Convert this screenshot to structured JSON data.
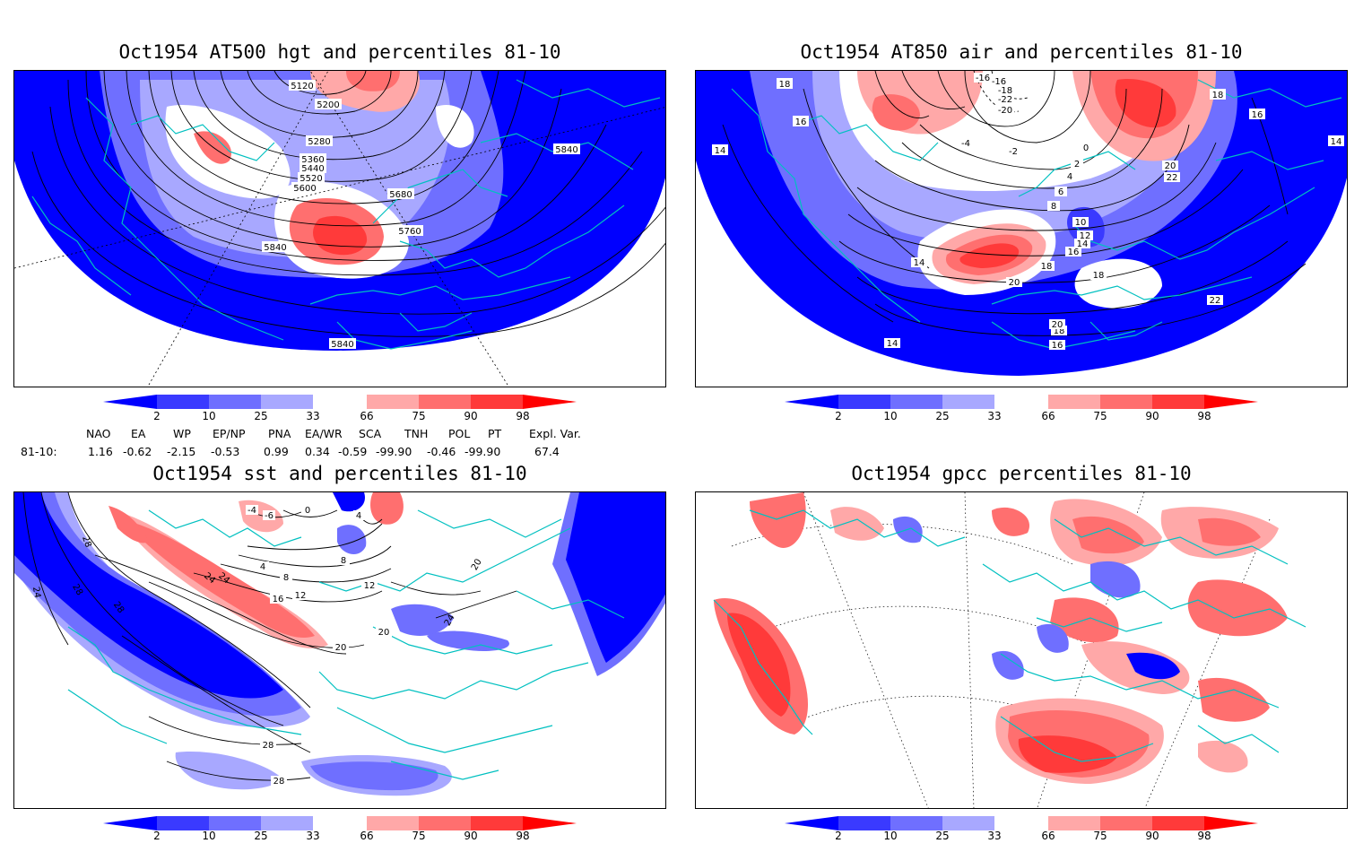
{
  "panels": [
    {
      "title": "Oct1954 AT500 hgt and percentiles 81-10",
      "contour_labels": [
        "5120",
        "5200",
        "5280",
        "5360",
        "5440",
        "5520",
        "5600",
        "5680",
        "5760",
        "5840",
        "5840",
        "5840"
      ]
    },
    {
      "title": "Oct1954 AT850 air and percentiles 81-10",
      "contour_labels": [
        "18",
        "16",
        "14",
        "14",
        "16",
        "18",
        "-16",
        "-16",
        "-18",
        "-22",
        "-20",
        "-2",
        "-4",
        "0",
        "2",
        "4",
        "6",
        "8",
        "10",
        "12",
        "14",
        "16",
        "18",
        "20",
        "22",
        "14",
        "20",
        "18",
        "16",
        "22",
        "18",
        "14",
        "20"
      ]
    },
    {
      "title": "Oct1954 sst and percentiles 81-10",
      "contour_labels": [
        "28",
        "24",
        "28",
        "28",
        "24",
        "-4",
        "-6",
        "0",
        "4",
        "8",
        "12",
        "16",
        "20",
        "24",
        "4",
        "8",
        "12",
        "20",
        "24",
        "20",
        "28",
        "28"
      ]
    },
    {
      "title": "Oct1954 gpcc percentiles 81-10",
      "contour_labels": []
    }
  ],
  "colorbar": {
    "labels": [
      "2",
      "10",
      "25",
      "33",
      "66",
      "75",
      "90",
      "98"
    ],
    "colors": {
      "lt2": "#0000ff",
      "b2_10": "#3a3aff",
      "b10_25": "#6f6fff",
      "b25_33": "#a8a8ff",
      "mid": "#ffffff",
      "b66_75": "#ffa8a8",
      "b75_90": "#ff6f6f",
      "b90_98": "#ff3a3a",
      "gt98": "#ff0000"
    }
  },
  "indices": {
    "headers": [
      "NAO",
      "EA",
      "WP",
      "EP/NP",
      "PNA",
      "EA/WR",
      "SCA",
      "TNH",
      "POL",
      "PT",
      "Expl. Var."
    ],
    "row_label": "81-10:",
    "values": [
      "1.16",
      "-0.62",
      "-2.15",
      "-0.53",
      "0.99",
      "0.34",
      "-0.59",
      "-99.90",
      "-0.46",
      "-99.90",
      "67.4"
    ]
  },
  "colors": {
    "coast": "#00c0c0",
    "contour": "#000000"
  }
}
